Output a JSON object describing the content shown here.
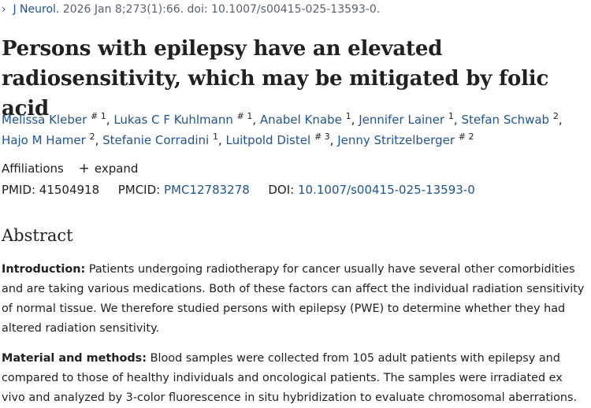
{
  "citation": {
    "journal": "J Neurol.",
    "details": "2026 Jan 8;273(1):66. doi: 10.1007/s00415-025-13593-0."
  },
  "article": {
    "title": "Persons with epilepsy have an elevated radiosensitivity, which may be mitigated by folic acid"
  },
  "authors": [
    {
      "name": "Melissa Kleber",
      "sup": "# 1",
      "sep": ","
    },
    {
      "name": "Lukas C F Kuhlmann",
      "sup": "# 1",
      "sep": ","
    },
    {
      "name": "Anabel Knabe",
      "sup": "1",
      "sep": ","
    },
    {
      "name": "Jennifer Lainer",
      "sup": "1",
      "sep": ","
    },
    {
      "name": "Stefan Schwab",
      "sup": "2",
      "sep": ","
    },
    {
      "name": "Hajo M Hamer",
      "sup": "2",
      "sep": ","
    },
    {
      "name": "Stefanie Corradini",
      "sup": "1",
      "sep": ","
    },
    {
      "name": "Luitpold Distel",
      "sup": "# 3",
      "sep": ","
    },
    {
      "name": "Jenny Stritzelberger",
      "sup": "# 2",
      "sep": ""
    }
  ],
  "affiliations": {
    "label": "Affiliations",
    "expand_icon": "+",
    "expand_label": "expand"
  },
  "identifiers": {
    "pmid_label": "PMID:",
    "pmid": "41504918",
    "pmcid_label": "PMCID:",
    "pmcid": "PMC12783278",
    "doi_label": "DOI:",
    "doi": "10.1007/s00415-025-13593-0"
  },
  "abstract": {
    "heading": "Abstract",
    "sections": [
      {
        "label": "Introduction:",
        "text": "Patients undergoing radiotherapy for cancer usually have several other comorbidities and are taking various medications. Both of these factors can affect the individual radiation sensitivity of normal tissue. We therefore studied persons with epilepsy (PWE) to determine whether they had altered radiation sensitivity."
      },
      {
        "label": "Material and methods:",
        "text": "Blood samples were collected from 105 adult patients with epilepsy and compared to those of healthy individuals and oncological patients. The samples were irradiated ex vivo and analyzed by 3-color fluorescence in situ hybridization to evaluate chromosomal aberrations."
      }
    ]
  },
  "colors": {
    "link": "#205493",
    "text": "#212121",
    "muted": "#5b616b"
  }
}
